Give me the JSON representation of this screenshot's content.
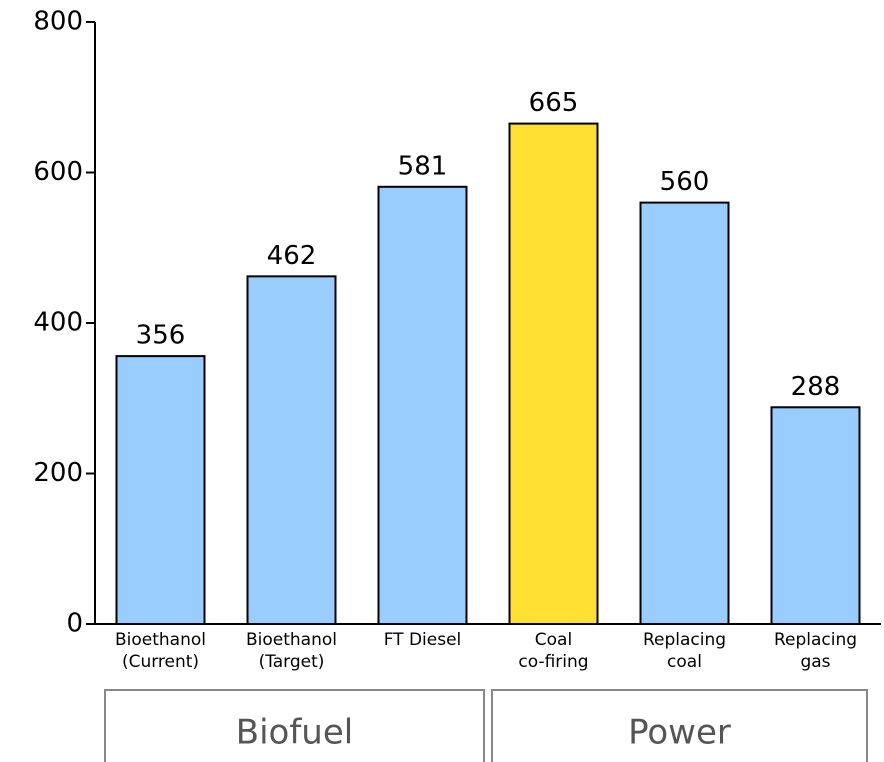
{
  "chart_data": {
    "type": "bar",
    "categories": [
      [
        "Bioethanol",
        "(Current)"
      ],
      [
        "Bioethanol",
        "(Target)"
      ],
      [
        "FT Diesel"
      ],
      [
        "Coal",
        "co-firing"
      ],
      [
        "Replacing",
        "coal"
      ],
      [
        "Replacing",
        "gas"
      ]
    ],
    "values": [
      356,
      462,
      581,
      665,
      560,
      288
    ],
    "colors": [
      "#99ccff",
      "#99ccff",
      "#99ccff",
      "#ffe033",
      "#99ccff",
      "#99ccff"
    ],
    "groups": [
      "Biofuel",
      "Power"
    ],
    "ylim": [
      0,
      800
    ],
    "yticks": [
      0,
      200,
      400,
      600,
      800
    ]
  }
}
